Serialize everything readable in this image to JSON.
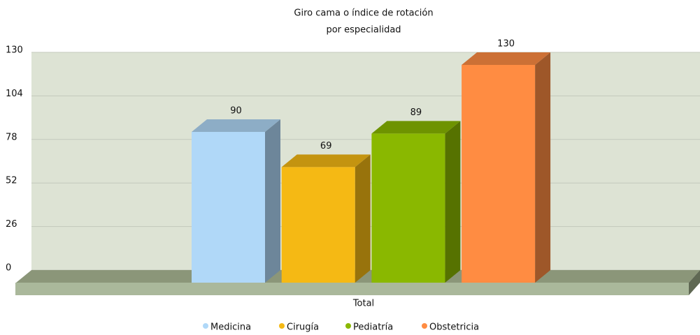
{
  "chart_data": {
    "type": "bar",
    "title": [
      "Giro cama o índice de rotación",
      "por especialidad"
    ],
    "categories": [
      "Total"
    ],
    "series": [
      {
        "name": "Medicina",
        "color": "#b0d8f8",
        "values": [
          90
        ]
      },
      {
        "name": "Cirugía",
        "color": "#f5b914",
        "values": [
          69
        ]
      },
      {
        "name": "Pediatría",
        "color": "#8ab800",
        "values": [
          89
        ]
      },
      {
        "name": "Obstetricia",
        "color": "#ff8c42",
        "values": [
          130
        ]
      }
    ],
    "ylim": [
      0,
      130
    ],
    "yticks": [
      0,
      26,
      52,
      78,
      104,
      130
    ],
    "grid": true,
    "legend": "bottom"
  }
}
